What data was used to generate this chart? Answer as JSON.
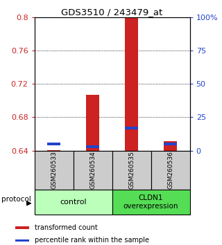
{
  "title": "GDS3510 / 243479_at",
  "samples": [
    "GSM260533",
    "GSM260534",
    "GSM260535",
    "GSM260536"
  ],
  "red_values": [
    0.641,
    0.707,
    0.8,
    0.651
  ],
  "blue_values_pct": [
    5,
    3,
    17,
    5
  ],
  "ylim": [
    0.64,
    0.8
  ],
  "yticks_left": [
    0.64,
    0.68,
    0.72,
    0.76,
    0.8
  ],
  "yticks_right": [
    0,
    25,
    50,
    75,
    100
  ],
  "bar_base": 0.64,
  "red_color": "#cc2222",
  "blue_color": "#2244cc",
  "group_bg_control": "#bbffbb",
  "group_bg_cldn1": "#55dd55",
  "sample_bg": "#cccccc",
  "legend_red": "transformed count",
  "legend_blue": "percentile rank within the sample",
  "protocol_label": "protocol"
}
